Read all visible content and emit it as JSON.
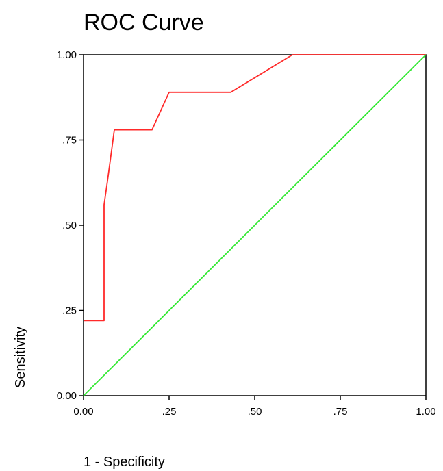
{
  "chart_data": {
    "type": "line",
    "title": "ROC Curve",
    "xlabel": "1 - Specificity",
    "ylabel": "Sensitivity",
    "xlim": [
      0,
      1
    ],
    "ylim": [
      0,
      1
    ],
    "x_ticks": [
      0,
      0.25,
      0.5,
      0.75,
      1.0
    ],
    "x_tick_labels": [
      "0.00",
      ".25",
      ".50",
      ".75",
      "1.00"
    ],
    "y_ticks": [
      0,
      0.25,
      0.5,
      0.75,
      1.0
    ],
    "y_tick_labels": [
      "0.00",
      ".25",
      ".50",
      ".75",
      "1.00"
    ],
    "grid": false,
    "series": [
      {
        "color": "#ff2a2a",
        "points": [
          [
            0.0,
            0.22
          ],
          [
            0.06,
            0.22
          ],
          [
            0.06,
            0.56
          ],
          [
            0.07,
            0.63
          ],
          [
            0.09,
            0.78
          ],
          [
            0.2,
            0.78
          ],
          [
            0.25,
            0.89
          ],
          [
            0.43,
            0.89
          ],
          [
            0.61,
            1.0
          ],
          [
            1.0,
            1.0
          ]
        ]
      },
      {
        "color": "#33e833",
        "points": [
          [
            0.0,
            0.0
          ],
          [
            1.0,
            1.0
          ]
        ]
      }
    ]
  }
}
